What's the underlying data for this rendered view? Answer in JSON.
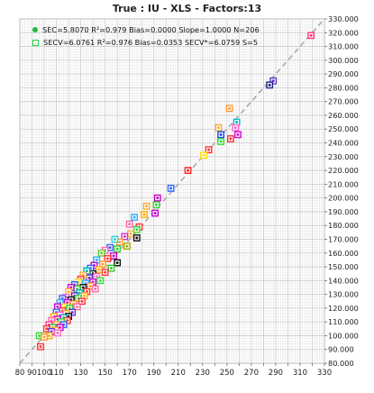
{
  "chart_data": {
    "type": "scatter",
    "title": "True : IU - XLS - Factors:13",
    "xlim": [
      80,
      330
    ],
    "ylim": [
      80,
      330
    ],
    "x_ticks": [
      80,
      90,
      100,
      110,
      120,
      130,
      140,
      150,
      160,
      170,
      180,
      190,
      200,
      210,
      220,
      230,
      240,
      250,
      260,
      270,
      280,
      290,
      300,
      310,
      320,
      330
    ],
    "y_ticks": [
      80,
      90,
      100,
      110,
      120,
      130,
      140,
      150,
      160,
      170,
      180,
      190,
      200,
      210,
      220,
      230,
      240,
      250,
      260,
      270,
      280,
      290,
      300,
      310,
      320,
      330
    ],
    "x_tick_labels": [
      "80",
      "90",
      "100",
      "110",
      "130",
      "150",
      "170",
      "190",
      "210",
      "230",
      "250",
      "270",
      "290",
      "310",
      "330"
    ],
    "y_tick_labels": [
      "80.000",
      "90.000",
      "100.000",
      "110.000",
      "120.000",
      "130.000",
      "140.000",
      "150.000",
      "160.000",
      "170.000",
      "180.000",
      "190.000",
      "200.000",
      "210.000",
      "220.000",
      "230.000",
      "240.000",
      "250.000",
      "260.000",
      "270.000",
      "280.000",
      "290.000",
      "300.000",
      "310.000",
      "320.000",
      "330.000"
    ],
    "grid": true,
    "y_axis_side": "right",
    "legend_placement": "top-left",
    "reference_line": {
      "slope": 1,
      "intercept": 0,
      "style": "dashed",
      "color": "#aaaaaa"
    },
    "legend": [
      {
        "marker": "dot",
        "color": "#22bb33",
        "text": "SEC=5.8070 R²=0.979 Bias=0.0000 Slope=1.0000 N=206"
      },
      {
        "marker": "square",
        "color": "#22dd44",
        "text": "SECV=6.0761 R²=0.976 Bias=0.0353 SECV*=6.0759 S=5"
      }
    ],
    "points": [
      {
        "x": 319,
        "y": 318,
        "c": "#ff3377"
      },
      {
        "x": 288,
        "y": 285,
        "c": "#6633cc"
      },
      {
        "x": 285,
        "y": 282,
        "c": "#222288"
      },
      {
        "x": 252,
        "y": 265,
        "c": "#ff9933"
      },
      {
        "x": 258,
        "y": 255,
        "c": "#00bbcc"
      },
      {
        "x": 243,
        "y": 251,
        "c": "#ffaa33"
      },
      {
        "x": 257,
        "y": 251,
        "c": "#ff66cc"
      },
      {
        "x": 245,
        "y": 246,
        "c": "#2244ee"
      },
      {
        "x": 259,
        "y": 246,
        "c": "#dd00dd"
      },
      {
        "x": 253,
        "y": 243,
        "c": "#ff3333"
      },
      {
        "x": 245,
        "y": 241,
        "c": "#33dd33"
      },
      {
        "x": 235,
        "y": 235,
        "c": "#ff3333"
      },
      {
        "x": 231,
        "y": 231,
        "c": "#ffdd00"
      },
      {
        "x": 218,
        "y": 220,
        "c": "#ff2222"
      },
      {
        "x": 204,
        "y": 207,
        "c": "#3366ff"
      },
      {
        "x": 193,
        "y": 200,
        "c": "#cc00cc"
      },
      {
        "x": 192,
        "y": 195,
        "c": "#33cc33"
      },
      {
        "x": 184,
        "y": 194,
        "c": "#ffaa33"
      },
      {
        "x": 191,
        "y": 189,
        "c": "#cc00cc"
      },
      {
        "x": 182,
        "y": 188,
        "c": "#ffaa00"
      },
      {
        "x": 174,
        "y": 186,
        "c": "#33aaff"
      },
      {
        "x": 170,
        "y": 181,
        "c": "#ff66aa"
      },
      {
        "x": 178,
        "y": 179,
        "c": "#ff3333"
      },
      {
        "x": 176,
        "y": 177,
        "c": "#33dd33"
      },
      {
        "x": 171,
        "y": 174,
        "c": "#ffaa33"
      },
      {
        "x": 176,
        "y": 171,
        "c": "#111111"
      },
      {
        "x": 166,
        "y": 172,
        "c": "#cc33cc"
      },
      {
        "x": 162,
        "y": 168,
        "c": "#ff9933"
      },
      {
        "x": 158,
        "y": 170,
        "c": "#33cccc"
      },
      {
        "x": 168,
        "y": 165,
        "c": "#aaaa00"
      },
      {
        "x": 160,
        "y": 163,
        "c": "#33cc33"
      },
      {
        "x": 154,
        "y": 164,
        "c": "#3366ff"
      },
      {
        "x": 150,
        "y": 162,
        "c": "#ff66aa"
      },
      {
        "x": 157,
        "y": 158,
        "c": "#cc00cc"
      },
      {
        "x": 147,
        "y": 160,
        "c": "#66cc33"
      },
      {
        "x": 152,
        "y": 156,
        "c": "#ff3333"
      },
      {
        "x": 143,
        "y": 155,
        "c": "#33aaff"
      },
      {
        "x": 160,
        "y": 153,
        "c": "#111111"
      },
      {
        "x": 148,
        "y": 152,
        "c": "#ff9933"
      },
      {
        "x": 141,
        "y": 151,
        "c": "#cc00cc"
      },
      {
        "x": 155,
        "y": 149,
        "c": "#33cc33"
      },
      {
        "x": 145,
        "y": 148,
        "c": "#ffaa00"
      },
      {
        "x": 138,
        "y": 149,
        "c": "#3366ff"
      },
      {
        "x": 150,
        "y": 146,
        "c": "#ff3333"
      },
      {
        "x": 140,
        "y": 145,
        "c": "#111111"
      },
      {
        "x": 135,
        "y": 147,
        "c": "#00bbcc"
      },
      {
        "x": 143,
        "y": 143,
        "c": "#ff66cc"
      },
      {
        "x": 137,
        "y": 142,
        "c": "#6633cc"
      },
      {
        "x": 132,
        "y": 144,
        "c": "#ffaa33"
      },
      {
        "x": 146,
        "y": 140,
        "c": "#33dd33"
      },
      {
        "x": 130,
        "y": 141,
        "c": "#ff3333"
      },
      {
        "x": 140,
        "y": 139,
        "c": "#cc00cc"
      },
      {
        "x": 134,
        "y": 138,
        "c": "#33aaff"
      },
      {
        "x": 128,
        "y": 139,
        "c": "#ffdd00"
      },
      {
        "x": 138,
        "y": 136,
        "c": "#ff9933"
      },
      {
        "x": 125,
        "y": 137,
        "c": "#3366ff"
      },
      {
        "x": 132,
        "y": 135,
        "c": "#111111"
      },
      {
        "x": 142,
        "y": 134,
        "c": "#ff66aa"
      },
      {
        "x": 127,
        "y": 134,
        "c": "#33cc33"
      },
      {
        "x": 122,
        "y": 135,
        "c": "#cc00cc"
      },
      {
        "x": 135,
        "y": 132,
        "c": "#ff3333"
      },
      {
        "x": 129,
        "y": 131,
        "c": "#00bbcc"
      },
      {
        "x": 120,
        "y": 132,
        "c": "#ffaa33"
      },
      {
        "x": 125,
        "y": 129,
        "c": "#6633cc"
      },
      {
        "x": 133,
        "y": 129,
        "c": "#ffaa00"
      },
      {
        "x": 118,
        "y": 128,
        "c": "#ff66cc"
      },
      {
        "x": 128,
        "y": 127,
        "c": "#33dd33"
      },
      {
        "x": 122,
        "y": 126,
        "c": "#111111"
      },
      {
        "x": 115,
        "y": 127,
        "c": "#3366ff"
      },
      {
        "x": 131,
        "y": 125,
        "c": "#ff3333"
      },
      {
        "x": 119,
        "y": 124,
        "c": "#cc00cc"
      },
      {
        "x": 124,
        "y": 123,
        "c": "#ff9933"
      },
      {
        "x": 113,
        "y": 124,
        "c": "#33aaff"
      },
      {
        "x": 117,
        "y": 121,
        "c": "#ffdd00"
      },
      {
        "x": 127,
        "y": 121,
        "c": "#ff66aa"
      },
      {
        "x": 121,
        "y": 120,
        "c": "#33cc33"
      },
      {
        "x": 111,
        "y": 121,
        "c": "#cc00cc"
      },
      {
        "x": 115,
        "y": 118,
        "c": "#ff3333"
      },
      {
        "x": 123,
        "y": 117,
        "c": "#6633cc"
      },
      {
        "x": 118,
        "y": 116,
        "c": "#ffaa33"
      },
      {
        "x": 110,
        "y": 117,
        "c": "#3366ff"
      },
      {
        "x": 113,
        "y": 115,
        "c": "#ff66cc"
      },
      {
        "x": 120,
        "y": 114,
        "c": "#111111"
      },
      {
        "x": 116,
        "y": 113,
        "c": "#00bbcc"
      },
      {
        "x": 108,
        "y": 114,
        "c": "#ffaa00"
      },
      {
        "x": 111,
        "y": 112,
        "c": "#cc00cc"
      },
      {
        "x": 119,
        "y": 111,
        "c": "#ff3333"
      },
      {
        "x": 114,
        "y": 110,
        "c": "#33dd33"
      },
      {
        "x": 106,
        "y": 111,
        "c": "#ff66aa"
      },
      {
        "x": 110,
        "y": 108,
        "c": "#ff9933"
      },
      {
        "x": 116,
        "y": 108,
        "c": "#3366ff"
      },
      {
        "x": 104,
        "y": 108,
        "c": "#ff3399"
      },
      {
        "x": 107,
        "y": 106,
        "c": "#33cc33"
      },
      {
        "x": 113,
        "y": 106,
        "c": "#cc00cc"
      },
      {
        "x": 109,
        "y": 104,
        "c": "#ffaa33"
      },
      {
        "x": 102,
        "y": 105,
        "c": "#ff3333"
      },
      {
        "x": 106,
        "y": 103,
        "c": "#6633cc"
      },
      {
        "x": 111,
        "y": 102,
        "c": "#ff66cc"
      },
      {
        "x": 104,
        "y": 100,
        "c": "#ffaa00"
      },
      {
        "x": 96,
        "y": 100,
        "c": "#33dd33"
      },
      {
        "x": 100,
        "y": 99,
        "c": "#ff9933"
      },
      {
        "x": 97,
        "y": 92,
        "c": "#ff3333"
      }
    ]
  }
}
